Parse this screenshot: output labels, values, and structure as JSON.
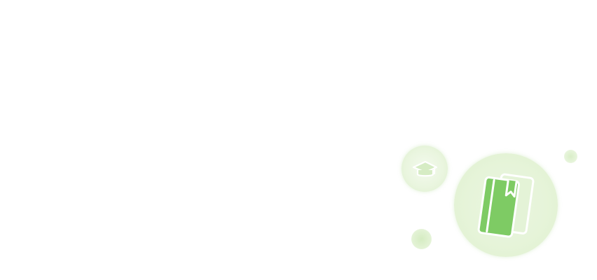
{
  "illustration": {
    "theme": "education",
    "icons": {
      "main": "book-icon",
      "secondary": "graduation-cap-icon"
    },
    "colors": {
      "background": "#ffffff",
      "bubble_light": "#e6f4d9",
      "book_green": "#7ecb64",
      "book_outline": "#ffffff",
      "cap_tint": "#c4e3ae"
    }
  }
}
